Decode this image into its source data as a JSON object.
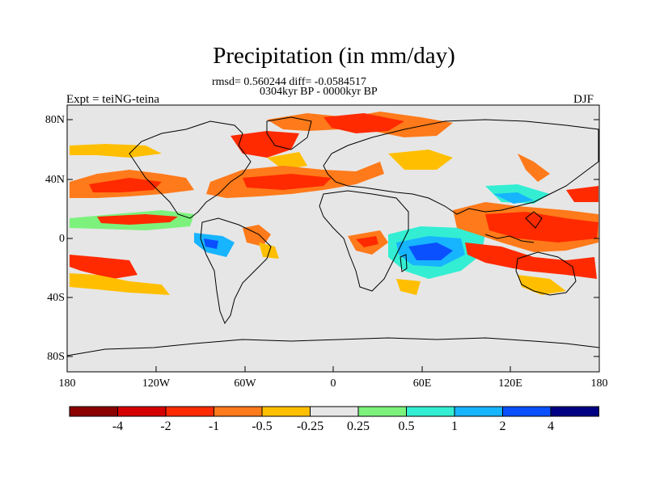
{
  "title": "Precipitation (in mm/day)",
  "stats": "rmsd= 0.560244 diff= -0.0584517",
  "period": "0304kyr BP - 0000kyr BP",
  "experiment": "Expt = teiNG-teina",
  "season": "DJF",
  "lat_labels": [
    "80N",
    "40N",
    "0",
    "40S",
    "80S"
  ],
  "lon_labels": [
    "180",
    "120W",
    "60W",
    "0",
    "60E",
    "120E",
    "180"
  ],
  "colorbar": {
    "labels": [
      "-4",
      "-2",
      "-1",
      "-0.5",
      "-0.25",
      "0.25",
      "0.5",
      "1",
      "2",
      "4"
    ],
    "colors": [
      "#8b0000",
      "#d40000",
      "#ff2a00",
      "#ff7a1a",
      "#ffbf00",
      "#e6e6e6",
      "#7cf27c",
      "#33eed2",
      "#17b4ff",
      "#0a50ff",
      "#000085"
    ]
  }
}
